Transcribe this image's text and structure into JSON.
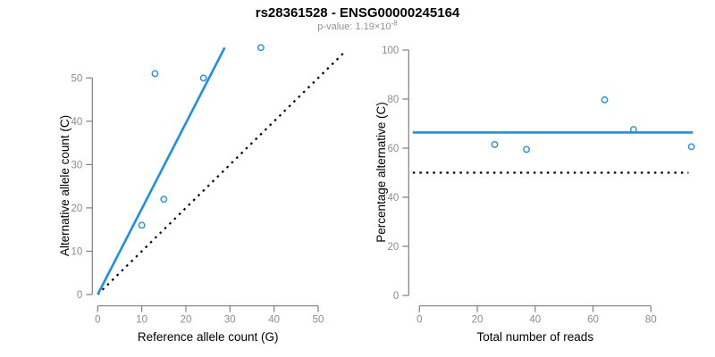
{
  "header": {
    "title": "rs28361528 - ENSG00000245164",
    "subtitle_prefix": "p-value: 1.19×10",
    "subtitle_exponent": "-8"
  },
  "colors": {
    "trend_blue": "#1E8FE8",
    "reference_black": "#000000",
    "axis_gray": "#7F7F7F",
    "tick_label_gray": "#8C8C8C",
    "title_black": "#000000",
    "subtitle_gray": "#919191"
  },
  "chart_data": [
    {
      "type": "scatter",
      "panel": "left",
      "xlabel": "Reference allele count (G)",
      "ylabel": "Alternative allele count (C)",
      "xlim": [
        0,
        50
      ],
      "ylim": [
        0,
        50
      ],
      "xticks": [
        0,
        10,
        20,
        30,
        40,
        50
      ],
      "yticks": [
        0,
        10,
        20,
        30,
        40,
        50
      ],
      "grid": false,
      "legend": null,
      "points": [
        [
          10,
          16
        ],
        [
          13,
          51
        ],
        [
          15,
          22
        ],
        [
          24,
          50
        ],
        [
          37,
          57
        ]
      ],
      "lines": [
        {
          "name": "identity-line",
          "x1": 0,
          "y1": 0,
          "x2": 56,
          "y2": 56,
          "style": "dotted",
          "color": "black"
        },
        {
          "name": "fit-line",
          "x1": 0,
          "y1": 0,
          "x2": 28.8,
          "y2": 57,
          "style": "solid",
          "color": "blue"
        }
      ]
    },
    {
      "type": "scatter",
      "panel": "right",
      "xlabel": "Total number of reads",
      "ylabel": "Percentage alternative (C)",
      "xlim": [
        0,
        95
      ],
      "ylim": [
        0,
        100
      ],
      "xticks": [
        0,
        20,
        40,
        60,
        80
      ],
      "yticks": [
        0,
        20,
        40,
        60,
        80,
        100
      ],
      "grid": false,
      "legend": null,
      "points": [
        [
          26,
          61.5
        ],
        [
          37,
          59.5
        ],
        [
          64,
          79.7
        ],
        [
          74,
          67.6
        ],
        [
          94,
          60.6
        ]
      ],
      "lines": [
        {
          "name": "null-line",
          "x1": -2.3,
          "y1": 50,
          "x2": 93,
          "y2": 50,
          "style": "dotted",
          "color": "black"
        },
        {
          "name": "mean-line",
          "x1": -2.3,
          "y1": 66.4,
          "x2": 94.5,
          "y2": 66.4,
          "style": "solid",
          "color": "blue"
        }
      ]
    }
  ]
}
